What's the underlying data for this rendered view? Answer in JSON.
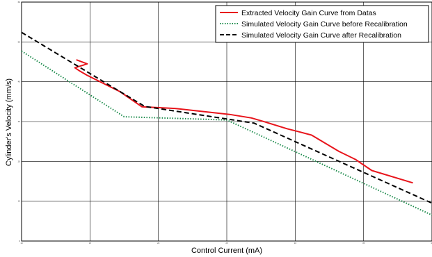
{
  "chart_data": {
    "type": "line",
    "title": "",
    "xlabel": "Control Current (mA)",
    "ylabel": "Cylinder's Velocity (mm/s)",
    "xlim": [
      10,
      40
    ],
    "ylim": [
      0,
      60
    ],
    "grid": true,
    "legend_position": "top-right",
    "x_ticks": [
      10,
      15,
      20,
      25,
      30,
      35,
      40
    ],
    "y_ticks": [
      0,
      10,
      20,
      30,
      40,
      50,
      60
    ],
    "x_tick_labels": [
      "10",
      "15",
      "20",
      "25",
      "30",
      "35",
      "40"
    ],
    "y_tick_labels": [
      "0",
      "10",
      "20",
      "30",
      "40",
      "50",
      "60"
    ],
    "series": [
      {
        "name": "Extracted Velocity Gain Curve from Datas",
        "color": "#e8141b",
        "style": "solid",
        "x": [
          14,
          14.8,
          13.9,
          14.2,
          14.8,
          17.2,
          18.8,
          21.2,
          25.2,
          26.8,
          27.8,
          29.4,
          30.2,
          31.2,
          33.2,
          34.4,
          35.6,
          38.6
        ],
        "y": [
          45.5,
          44.5,
          43.5,
          42.8,
          41.6,
          37.5,
          33.7,
          33.3,
          31.8,
          30.9,
          29.9,
          28.2,
          27.5,
          26.6,
          22.5,
          20.5,
          17.7,
          14.6
        ]
      },
      {
        "name": "Simulated Velocity Gain Curve before Recalibration",
        "color": "#1a8a4a",
        "style": "dotted",
        "x": [
          10,
          17.5,
          25,
          40
        ],
        "y": [
          47.7,
          31.2,
          30.4,
          6.5
        ]
      },
      {
        "name": "Simulated Velocity Gain Curve after Recalibration",
        "color": "#000000",
        "style": "dashed",
        "x": [
          10,
          19,
          27,
          40
        ],
        "y": [
          52.4,
          33.8,
          29.6,
          9.5
        ]
      }
    ]
  }
}
